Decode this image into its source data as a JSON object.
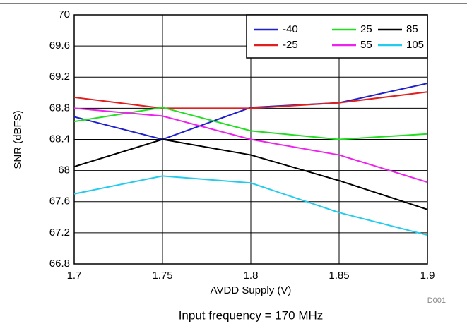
{
  "chart_data": {
    "type": "line",
    "x": [
      1.7,
      1.75,
      1.8,
      1.85,
      1.9
    ],
    "xlim": [
      1.7,
      1.9
    ],
    "xticks": [
      1.7,
      1.75,
      1.8,
      1.85,
      1.9
    ],
    "ylim": [
      66.8,
      70
    ],
    "yticks": [
      66.8,
      67.2,
      67.6,
      68,
      68.4,
      68.8,
      69.2,
      69.6,
      70
    ],
    "xlabel": "AVDD Supply (V)",
    "ylabel": "SNR (dBFS)",
    "caption": "Input frequency = 170 MHz",
    "note": "D001",
    "grid": true,
    "legend": "upper right",
    "series": [
      {
        "name": "-40",
        "color": "#1f1fcc",
        "values": [
          68.69,
          68.4,
          68.81,
          68.87,
          69.12
        ]
      },
      {
        "name": "-25",
        "color": "#e01f1f",
        "values": [
          68.94,
          68.8,
          68.8,
          68.87,
          69.01
        ]
      },
      {
        "name": "25",
        "color": "#22dd22",
        "values": [
          68.63,
          68.81,
          68.51,
          68.4,
          68.47
        ]
      },
      {
        "name": "55",
        "color": "#ee22ee",
        "values": [
          68.8,
          68.7,
          68.4,
          68.2,
          67.85
        ]
      },
      {
        "name": "85",
        "color": "#000000",
        "values": [
          68.05,
          68.4,
          68.2,
          67.87,
          67.5
        ]
      },
      {
        "name": "105",
        "color": "#22ccee",
        "values": [
          67.7,
          67.93,
          67.84,
          67.46,
          67.17
        ]
      }
    ]
  }
}
